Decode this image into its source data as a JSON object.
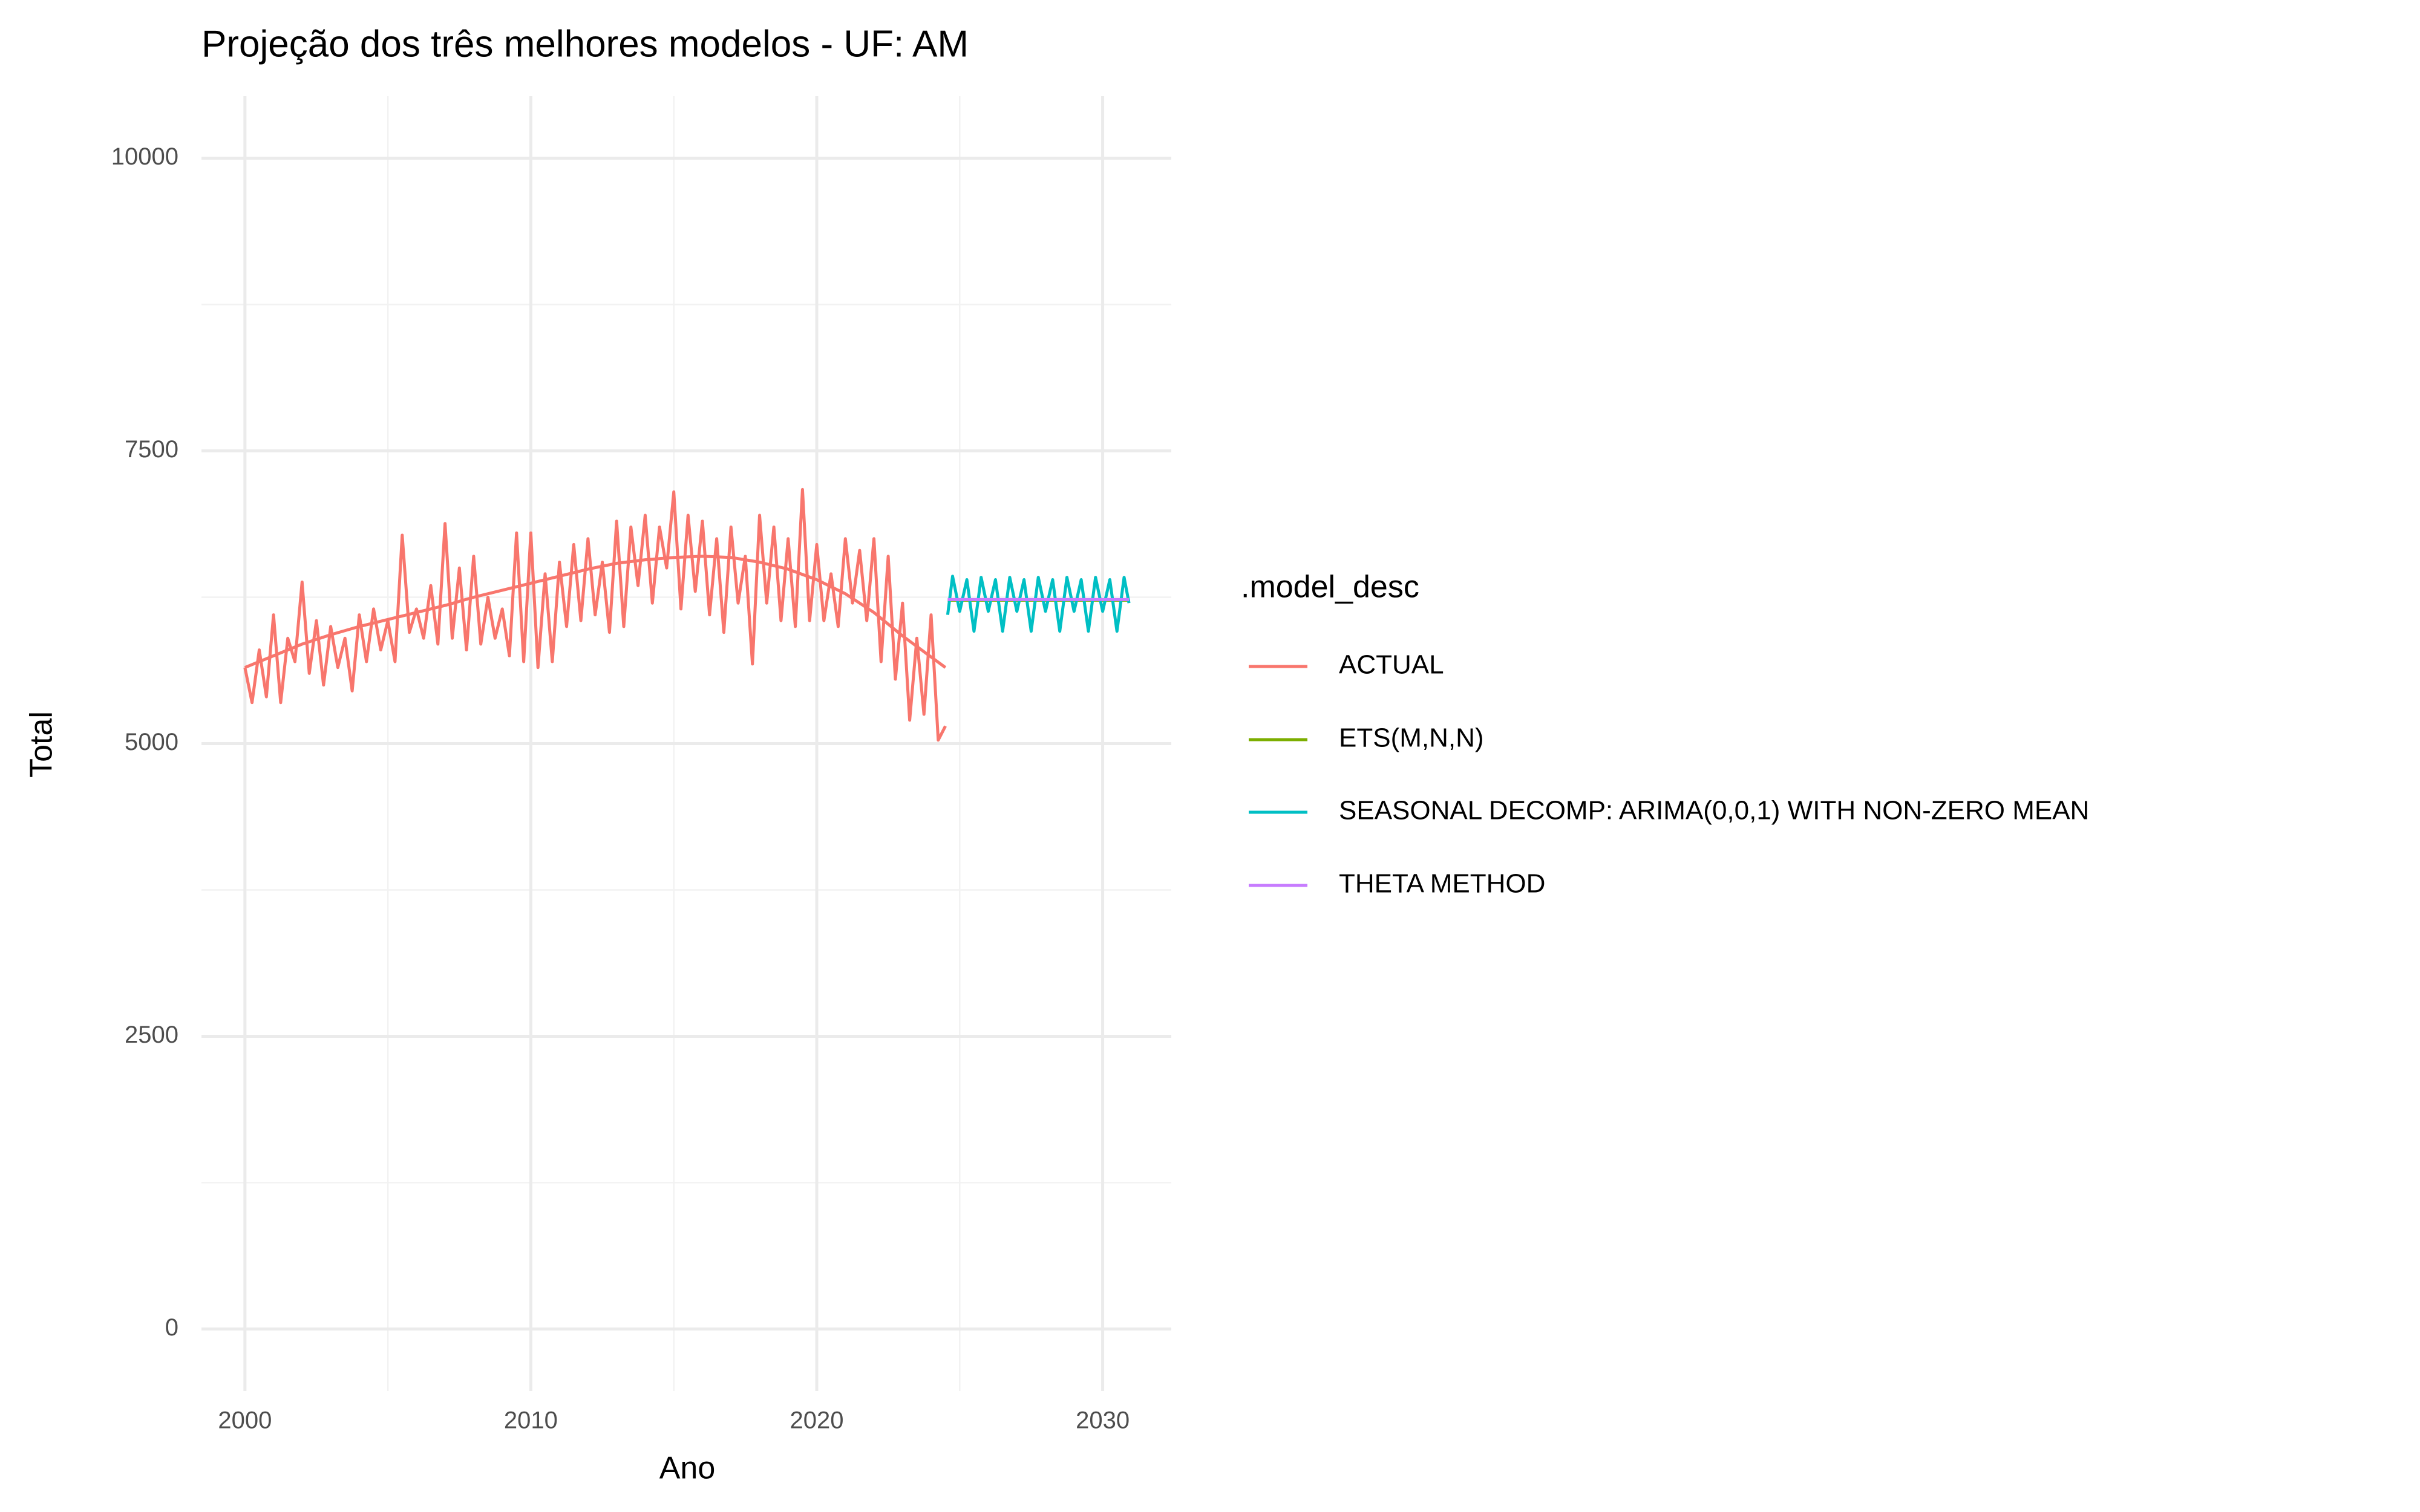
{
  "chart_data": {
    "type": "line",
    "title": "Projeção dos três melhores modelos - UF: AM",
    "x_label": "Ano",
    "y_label": "Total",
    "legend_title": ".model_desc",
    "xlim": [
      1998.48,
      2032.4
    ],
    "ylim": [
      -530,
      10530
    ],
    "xticks": [
      2000,
      2010,
      2020,
      2030
    ],
    "yticks": [
      0,
      2500,
      5000,
      7500,
      10000
    ],
    "xminor": [
      2005,
      2015,
      2025
    ],
    "yminor": [
      1250,
      3750,
      6250,
      8750
    ],
    "grid": true,
    "legend": "right",
    "series": [
      {
        "name": "ACTUAL",
        "color": "#F8766D",
        "x": [
          2000,
          2000.25,
          2000.5,
          2000.75,
          2001,
          2001.25,
          2001.5,
          2001.75,
          2002,
          2002.25,
          2002.5,
          2002.75,
          2003,
          2003.25,
          2003.5,
          2003.75,
          2004,
          2004.25,
          2004.5,
          2004.75,
          2005,
          2005.25,
          2005.5,
          2005.75,
          2006,
          2006.25,
          2006.5,
          2006.75,
          2007,
          2007.25,
          2007.5,
          2007.75,
          2008,
          2008.25,
          2008.5,
          2008.75,
          2009,
          2009.25,
          2009.5,
          2009.75,
          2010,
          2010.25,
          2010.5,
          2010.75,
          2011,
          2011.25,
          2011.5,
          2011.75,
          2012,
          2012.25,
          2012.5,
          2012.75,
          2013,
          2013.25,
          2013.5,
          2013.75,
          2014,
          2014.25,
          2014.5,
          2014.75,
          2015,
          2015.25,
          2015.5,
          2015.75,
          2016,
          2016.25,
          2016.5,
          2016.75,
          2017,
          2017.25,
          2017.5,
          2017.75,
          2018,
          2018.25,
          2018.5,
          2018.75,
          2019,
          2019.25,
          2019.5,
          2019.75,
          2020,
          2020.25,
          2020.5,
          2020.75,
          2021,
          2021.25,
          2021.5,
          2021.75,
          2022,
          2022.25,
          2022.5,
          2022.75,
          2023,
          2023.25,
          2023.5,
          2023.75,
          2024,
          2024.25,
          2024.5
        ],
        "values": [
          5650,
          5350,
          5800,
          5400,
          6100,
          5350,
          5900,
          5700,
          6380,
          5600,
          6050,
          5500,
          6000,
          5650,
          5900,
          5450,
          6100,
          5700,
          6150,
          5800,
          6050,
          5700,
          6780,
          5950,
          6150,
          5900,
          6350,
          5850,
          6880,
          5900,
          6500,
          5800,
          6600,
          5850,
          6250,
          5900,
          6150,
          5750,
          6800,
          5700,
          6800,
          5650,
          6450,
          5700,
          6550,
          6000,
          6700,
          6050,
          6750,
          6100,
          6550,
          5950,
          6900,
          6000,
          6850,
          6350,
          6950,
          6200,
          6850,
          6500,
          7150,
          6150,
          6950,
          6300,
          6900,
          6100,
          6750,
          5950,
          6850,
          6200,
          6600,
          5680,
          6950,
          6200,
          6850,
          6050,
          6750,
          6000,
          7170,
          6050,
          6700,
          6050,
          6450,
          6000,
          6750,
          6200,
          6650,
          6050,
          6750,
          5700,
          6600,
          5550,
          6200,
          5200,
          5900,
          5250,
          6100,
          5030,
          5150
        ]
      },
      {
        "color": "#F8766D",
        "x": [
          2000,
          2001,
          2002,
          2003,
          2004,
          2005,
          2006,
          2007,
          2008,
          2009,
          2010,
          2011,
          2012,
          2013,
          2014,
          2015,
          2016,
          2017,
          2018,
          2019,
          2020,
          2021,
          2022,
          2023,
          2024,
          2024.5
        ],
        "values": [
          5650,
          5750,
          5850,
          5930,
          6000,
          6060,
          6120,
          6180,
          6250,
          6310,
          6370,
          6430,
          6490,
          6540,
          6570,
          6590,
          6600,
          6590,
          6550,
          6490,
          6400,
          6280,
          6120,
          5920,
          5740,
          5650
        ]
      },
      {
        "name": "ETS(M,N,N)",
        "color": "#7CAE00",
        "x": [
          2024.58,
          2030.92
        ],
        "values": [
          6225,
          6225
        ]
      },
      {
        "name": "SEASONAL DECOMP: ARIMA(0,0,1) WITH NON-ZERO MEAN",
        "color": "#00BFC4",
        "x": [
          2024.58,
          2024.75,
          2025,
          2025.25,
          2025.5,
          2025.75,
          2026,
          2026.25,
          2026.5,
          2026.75,
          2027,
          2027.25,
          2027.5,
          2027.75,
          2028,
          2028.25,
          2028.5,
          2028.75,
          2029,
          2029.25,
          2029.5,
          2029.75,
          2030,
          2030.25,
          2030.5,
          2030.75,
          2030.92
        ],
        "values": [
          6100,
          6430,
          6130,
          6400,
          5960,
          6420,
          6130,
          6400,
          5960,
          6420,
          6130,
          6400,
          5960,
          6420,
          6130,
          6400,
          5960,
          6420,
          6130,
          6400,
          5960,
          6420,
          6130,
          6400,
          5960,
          6420,
          6200
        ]
      },
      {
        "name": "THETA METHOD",
        "color": "#C77CFF",
        "x": [
          2024.58,
          2030.92
        ],
        "values": [
          6230,
          6230
        ]
      }
    ]
  }
}
